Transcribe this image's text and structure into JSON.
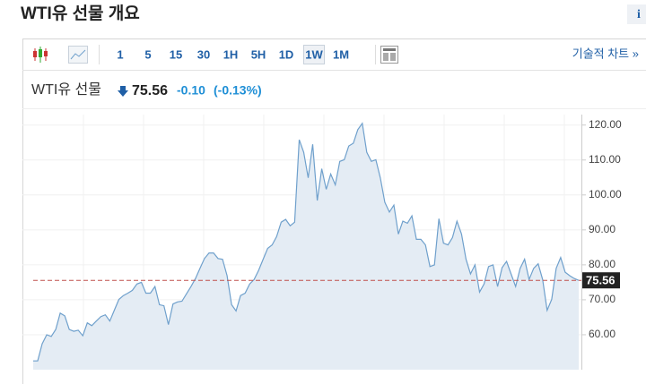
{
  "header": {
    "title": "WTI유 선물 개요",
    "info": "i"
  },
  "toolbar": {
    "intervals": [
      "1",
      "5",
      "15",
      "30",
      "1H",
      "5H",
      "1D",
      "1W",
      "1M"
    ],
    "technical": "기술적 차트 »"
  },
  "quote": {
    "name": "WTI유 선물",
    "price": "75.56",
    "change": "-0.10",
    "change_pct": "(-0.13%)"
  },
  "chart_data": {
    "type": "area",
    "color": "#6fa0cc",
    "fill": "#e4ecf4",
    "values": [
      52.5,
      52.5,
      57.4,
      60,
      59.5,
      61.5,
      66.2,
      65.4,
      61.5,
      61,
      61.3,
      59.7,
      63.4,
      62.6,
      63.9,
      65.2,
      65.7,
      63.9,
      67,
      70.1,
      71.2,
      71.9,
      72.7,
      74.5,
      75,
      71.9,
      71.9,
      73.8,
      68.6,
      68.3,
      62.9,
      68.8,
      69.4,
      69.6,
      71.7,
      73.8,
      76.1,
      79,
      81.8,
      83.4,
      83.4,
      81.8,
      81.6,
      76.9,
      68.6,
      66.8,
      71.2,
      71.9,
      74.5,
      75.8,
      78.4,
      81.6,
      84.7,
      85.7,
      88.1,
      92.2,
      93,
      91.2,
      92.2,
      115.8,
      112.2,
      104.9,
      114.5,
      98.4,
      107.5,
      101.6,
      106,
      102.9,
      109.6,
      110.1,
      114,
      114.8,
      118.7,
      120.5,
      112.2,
      109.6,
      110.1,
      104.9,
      97.9,
      95.1,
      97.1,
      88.8,
      92.5,
      91.9,
      94,
      87.3,
      87.3,
      85.7,
      79.5,
      80,
      93.2,
      86.2,
      85.7,
      87.8,
      92.5,
      88.8,
      81.6,
      77.4,
      80,
      72.2,
      74.5,
      79.5,
      80,
      73.8,
      79.2,
      81,
      77.4,
      73.8,
      79,
      81.6,
      75.8,
      79,
      80.3,
      75.8,
      67,
      70.1,
      79,
      82.1,
      77.9,
      76.9,
      76.1,
      75.56
    ],
    "ylim": [
      50,
      123
    ],
    "yticks": [
      {
        "value": 60,
        "label": "60.00"
      },
      {
        "value": 70,
        "label": "70.00"
      },
      {
        "value": 80,
        "label": "80.00"
      },
      {
        "value": 90,
        "label": "90.00"
      },
      {
        "value": 100,
        "label": "100.00"
      },
      {
        "value": 110,
        "label": "110.00"
      },
      {
        "value": 120,
        "label": "120.00"
      }
    ],
    "grid": true,
    "last_price": 75.56,
    "last_price_color": "#c0504d"
  }
}
